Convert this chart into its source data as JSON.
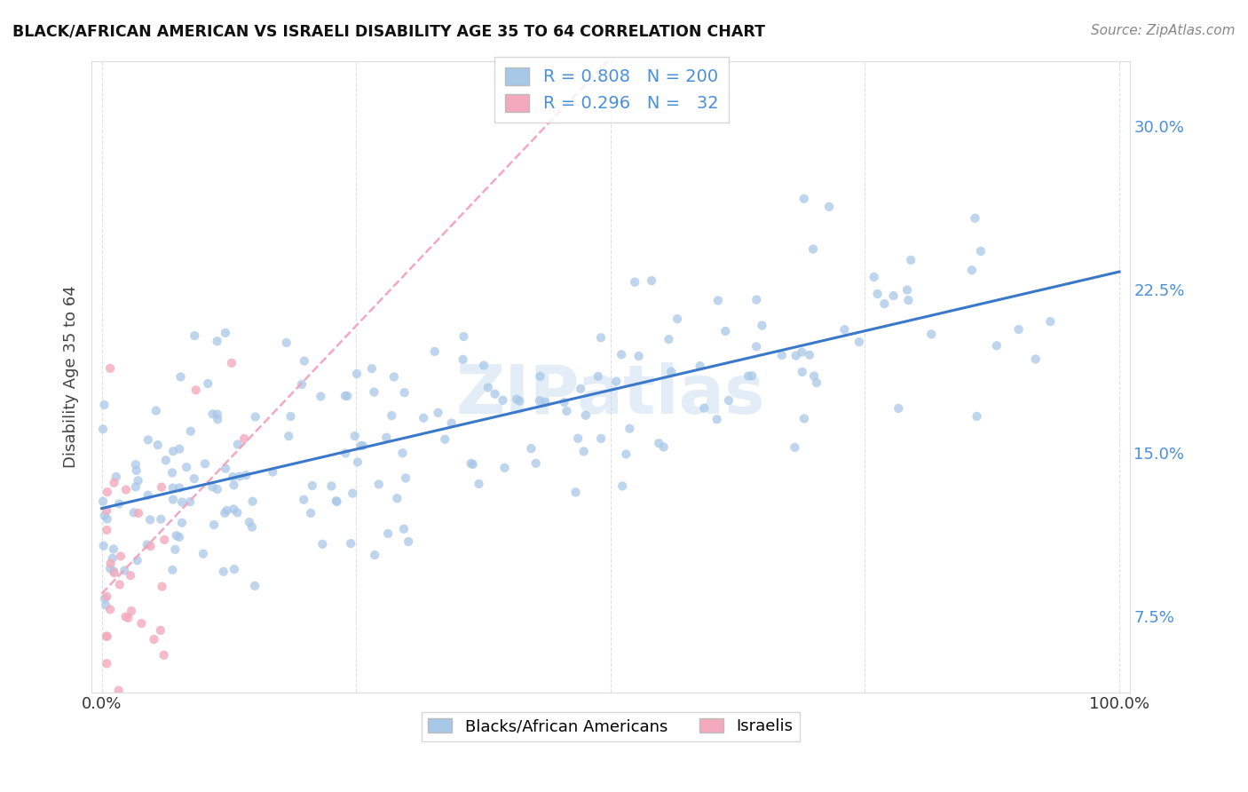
{
  "title": "BLACK/AFRICAN AMERICAN VS ISRAELI DISABILITY AGE 35 TO 64 CORRELATION CHART",
  "source": "Source: ZipAtlas.com",
  "ylabel": "Disability Age 35 to 64",
  "xlim": [
    -0.01,
    1.01
  ],
  "ylim": [
    0.04,
    0.33
  ],
  "yticks": [
    0.075,
    0.15,
    0.225,
    0.3
  ],
  "ytick_labels": [
    "7.5%",
    "15.0%",
    "22.5%",
    "30.0%"
  ],
  "xticks": [
    0.0,
    0.25,
    0.5,
    0.75,
    1.0
  ],
  "xtick_labels": [
    "0.0%",
    "",
    "",
    "",
    "100.0%"
  ],
  "blue_color": "#A8C8E8",
  "pink_color": "#F4AABC",
  "blue_line_color": "#3A78C9",
  "pink_line_color": "#E87090",
  "pink_line_dash_color": "#F0A0B8",
  "R_blue": 0.808,
  "N_blue": 200,
  "R_pink": 0.296,
  "N_pink": 32,
  "legend_label_blue": "Blacks/African Americans",
  "legend_label_pink": "Israelis",
  "watermark": "ZIPatlas",
  "background_color": "#FFFFFF",
  "grid_color": "#CCCCCC"
}
